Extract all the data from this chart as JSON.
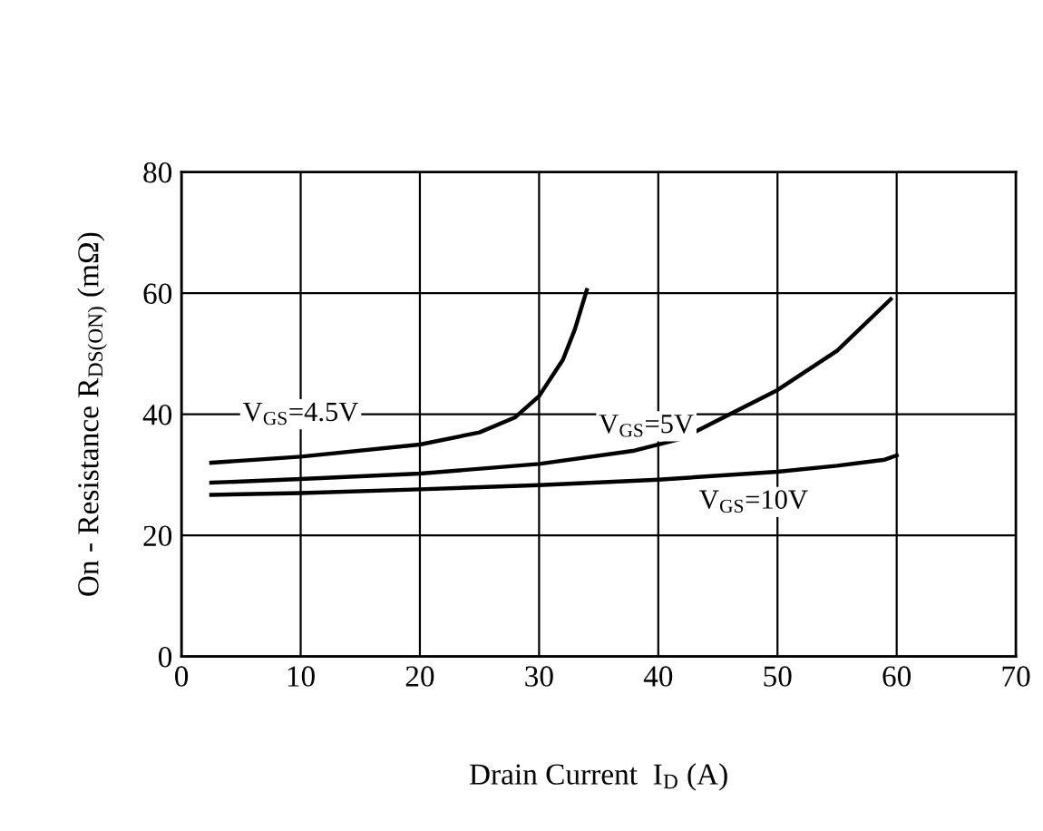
{
  "chart_data": {
    "type": "line",
    "xlabel": "Drain Current  I$_{D}$ (A)",
    "ylabel": "On - Resistance R$_{DS(ON)}$ (mΩ)",
    "xlim": [
      0,
      70
    ],
    "ylim": [
      0,
      80
    ],
    "xticks": [
      0,
      10,
      20,
      30,
      40,
      50,
      60,
      70
    ],
    "yticks": [
      0,
      20,
      40,
      60,
      80
    ],
    "grid": true,
    "series": [
      {
        "name": "V$_{GS}$=4.5V",
        "color": "#000000",
        "x": [
          2.5,
          10,
          20,
          25,
          28,
          30,
          32,
          33,
          34
        ],
        "values": [
          32,
          33,
          35,
          37,
          39.5,
          43,
          49,
          54,
          60.5
        ]
      },
      {
        "name": "V$_{GS}$=5V",
        "color": "#000000",
        "x": [
          2.5,
          10,
          20,
          30,
          38,
          42,
          45,
          50,
          55,
          59.5
        ],
        "values": [
          28.7,
          29.3,
          30.2,
          31.8,
          34,
          36,
          39,
          44,
          50.5,
          59
        ]
      },
      {
        "name": "V$_{GS}$=10V",
        "color": "#000000",
        "x": [
          2.5,
          10,
          20,
          30,
          40,
          50,
          55,
          59,
          60
        ],
        "values": [
          26.7,
          27,
          27.6,
          28.3,
          29.2,
          30.5,
          31.5,
          32.5,
          33.2
        ]
      }
    ],
    "legend": false
  }
}
